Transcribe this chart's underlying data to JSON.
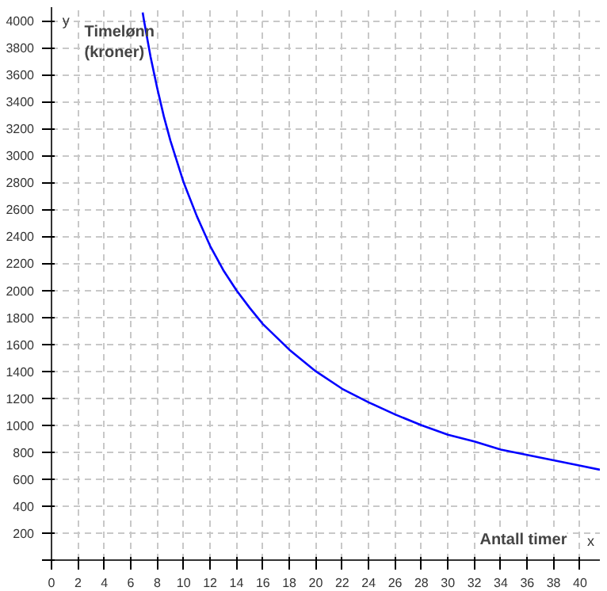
{
  "chart_data": {
    "type": "line",
    "xlabel": "Antall timer",
    "ylabel": "Timelønn\n(kroner)",
    "annotations": [
      "y",
      "x"
    ],
    "x": [
      6.9,
      7,
      7.5,
      8,
      8.5,
      9,
      10,
      11,
      12,
      13,
      14,
      15,
      16,
      18,
      20,
      22,
      24,
      26,
      28,
      30,
      32,
      34,
      36,
      38,
      40,
      41.5
    ],
    "series": [
      {
        "color": "#0000ff",
        "values": [
          4060,
          4000,
          3730,
          3500,
          3290,
          3110,
          2800,
          2550,
          2330,
          2150,
          2000,
          1870,
          1750,
          1560,
          1400,
          1270,
          1170,
          1080,
          1000,
          930,
          880,
          820,
          780,
          740,
          700,
          670
        ]
      }
    ],
    "xlim": [
      0,
      41.5
    ],
    "ylim": [
      0,
      4100
    ],
    "xticks": [
      0,
      2,
      4,
      6,
      8,
      10,
      12,
      14,
      16,
      18,
      20,
      22,
      24,
      26,
      28,
      30,
      32,
      34,
      36,
      38,
      40
    ],
    "yticks": [
      {
        "value": 0,
        "label": null
      },
      200,
      400,
      600,
      800,
      1000,
      1200,
      1400,
      1600,
      1800,
      2000,
      2200,
      2400,
      2600,
      2800,
      3000,
      3200,
      3400,
      3600,
      3800,
      4000
    ],
    "grid": true,
    "line_style": "solid",
    "marker": "none"
  }
}
